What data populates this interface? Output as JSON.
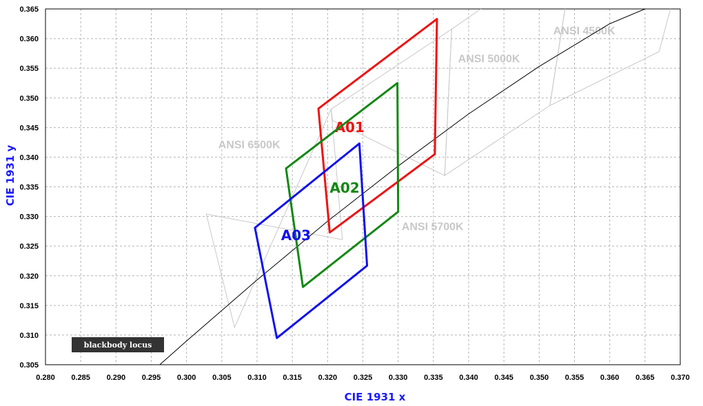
{
  "chart_data": {
    "type": "line",
    "xlabel": "CIE 1931 x",
    "ylabel": "CIE 1931 y",
    "xlim": [
      0.28,
      0.37
    ],
    "ylim": [
      0.305,
      0.365
    ],
    "x_ticks": [
      "0.280",
      "0.285",
      "0.290",
      "0.295",
      "0.300",
      "0.305",
      "0.310",
      "0.315",
      "0.320",
      "0.325",
      "0.330",
      "0.335",
      "0.340",
      "0.345",
      "0.350",
      "0.355",
      "0.360",
      "0.365",
      "0.370"
    ],
    "y_ticks": [
      "0.305",
      "0.310",
      "0.315",
      "0.320",
      "0.325",
      "0.330",
      "0.335",
      "0.340",
      "0.345",
      "0.350",
      "0.355",
      "0.360",
      "0.365"
    ],
    "grid": true,
    "legend": {
      "label": "blackbody locus",
      "placement": "bottom-left"
    },
    "blackbody_locus": {
      "name": "blackbody locus",
      "color": "#000000",
      "points": [
        [
          0.2962,
          0.305
        ],
        [
          0.3,
          0.309
        ],
        [
          0.31,
          0.3193
        ],
        [
          0.32,
          0.3292
        ],
        [
          0.33,
          0.3385
        ],
        [
          0.34,
          0.3473
        ],
        [
          0.35,
          0.3553
        ],
        [
          0.36,
          0.3625
        ],
        [
          0.365,
          0.365
        ]
      ]
    },
    "ansi_regions": [
      {
        "label": "ANSI 6500K",
        "color": "#c8c8c8",
        "polygon": [
          [
            0.3028,
            0.3304
          ],
          [
            0.3221,
            0.3261
          ],
          [
            0.3205,
            0.3481
          ],
          [
            0.3068,
            0.3113
          ]
        ],
        "label_pos": [
          0.3045,
          0.3415
        ]
      },
      {
        "label": "ANSI 5700K",
        "color": "#c8c8c8",
        "polygon": [
          [
            0.3205,
            0.3481
          ],
          [
            0.3376,
            0.3616
          ],
          [
            0.3366,
            0.3369
          ],
          [
            0.3207,
            0.3462
          ]
        ],
        "label_pos": [
          0.3305,
          0.3277
        ]
      },
      {
        "label": "ANSI 5000K",
        "color": "#c8c8c8",
        "polygon": [
          [
            0.3376,
            0.3616
          ],
          [
            0.3551,
            0.376
          ],
          [
            0.3515,
            0.3487
          ],
          [
            0.3366,
            0.3369
          ]
        ],
        "label_pos": [
          0.3385,
          0.356
        ]
      },
      {
        "label": "ANSI 4500K",
        "color": "#c8c8c8",
        "polygon": [
          [
            0.3548,
            0.3736
          ],
          [
            0.3736,
            0.3874
          ],
          [
            0.367,
            0.3578
          ],
          [
            0.3515,
            0.3487
          ]
        ],
        "label_pos": [
          0.352,
          0.3607
        ]
      }
    ],
    "series": [
      {
        "name": "A01",
        "color": "#ee1111",
        "points": [
          [
            0.3187,
            0.3482
          ],
          [
            0.3355,
            0.3633
          ],
          [
            0.3352,
            0.3405
          ],
          [
            0.3203,
            0.3273
          ]
        ],
        "label_pos": [
          0.321,
          0.3442
        ]
      },
      {
        "name": "A02",
        "color": "#118811",
        "points": [
          [
            0.3141,
            0.3381
          ],
          [
            0.3299,
            0.3525
          ],
          [
            0.33,
            0.3308
          ],
          [
            0.3165,
            0.3181
          ]
        ],
        "label_pos": [
          0.3203,
          0.334
        ]
      },
      {
        "name": "A03",
        "color": "#1111ee",
        "points": [
          [
            0.3097,
            0.3281
          ],
          [
            0.3245,
            0.3423
          ],
          [
            0.3256,
            0.3217
          ],
          [
            0.3128,
            0.3095
          ]
        ],
        "label_pos": [
          0.3134,
          0.326
        ]
      }
    ]
  }
}
